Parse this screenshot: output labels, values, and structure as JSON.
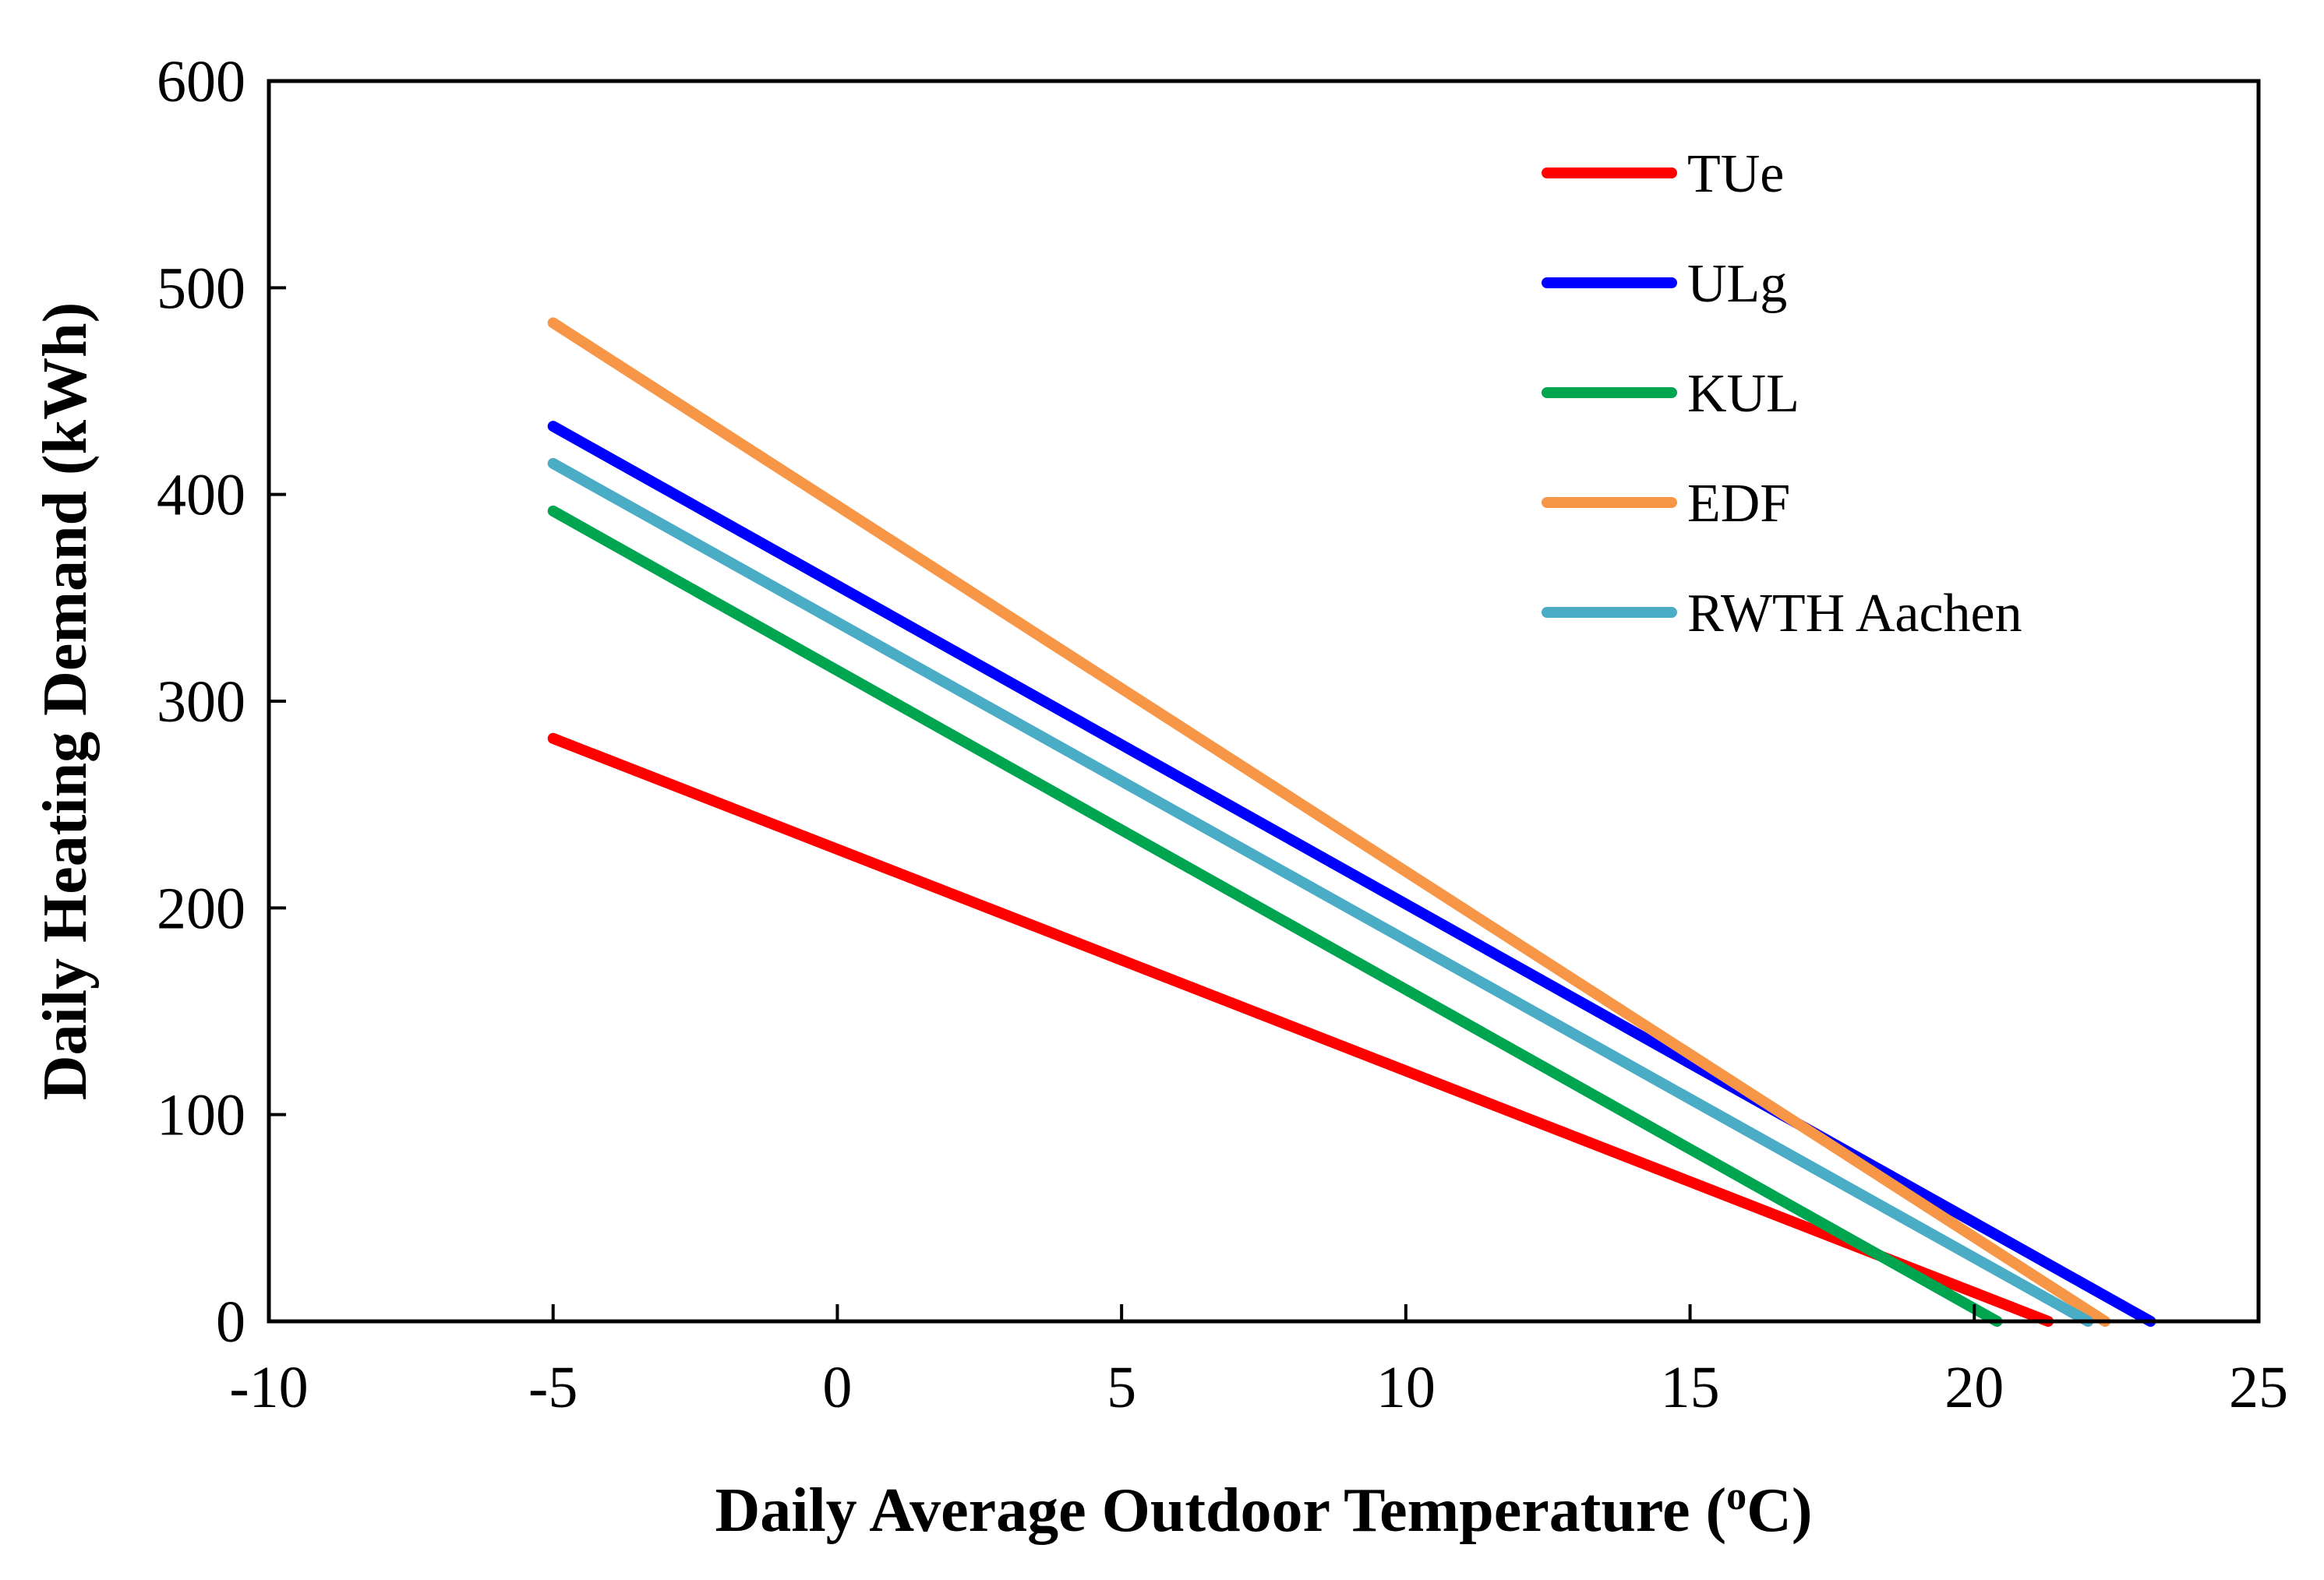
{
  "chart_data": {
    "type": "line",
    "title": "",
    "xlabel_main": "Daily Average Outdoor Temperature (",
    "xlabel_sup": "o",
    "xlabel_end": "C)",
    "ylabel": "Daily Heating Demand (kWh)",
    "xlim": [
      -10,
      25
    ],
    "ylim": [
      0,
      600
    ],
    "x_ticks": [
      -10,
      -5,
      0,
      5,
      10,
      15,
      20,
      25
    ],
    "y_ticks": [
      0,
      100,
      200,
      300,
      400,
      500,
      600
    ],
    "x_tick_labels": [
      "-10",
      "-5",
      "0",
      "5",
      "10",
      "15",
      "20",
      "25"
    ],
    "y_tick_labels": [
      "0",
      "100",
      "200",
      "300",
      "400",
      "500",
      "600"
    ],
    "grid": false,
    "legend_position": "top-right",
    "series": [
      {
        "name": "TUe",
        "color": "#ff0000",
        "x": [
          -5,
          21.3
        ],
        "y": [
          282,
          0
        ]
      },
      {
        "name": "ULg",
        "color": "#0000ff",
        "x": [
          -5,
          23.1
        ],
        "y": [
          433,
          0
        ]
      },
      {
        "name": "KUL",
        "color": "#00a550",
        "x": [
          -5,
          20.4
        ],
        "y": [
          392,
          0
        ]
      },
      {
        "name": "EDF",
        "color": "#f79646",
        "x": [
          -5,
          22.3
        ],
        "y": [
          483,
          0
        ]
      },
      {
        "name": "RWTH Aachen",
        "color": "#4bacc6",
        "x": [
          -5,
          22.0
        ],
        "y": [
          415,
          0
        ]
      }
    ]
  }
}
